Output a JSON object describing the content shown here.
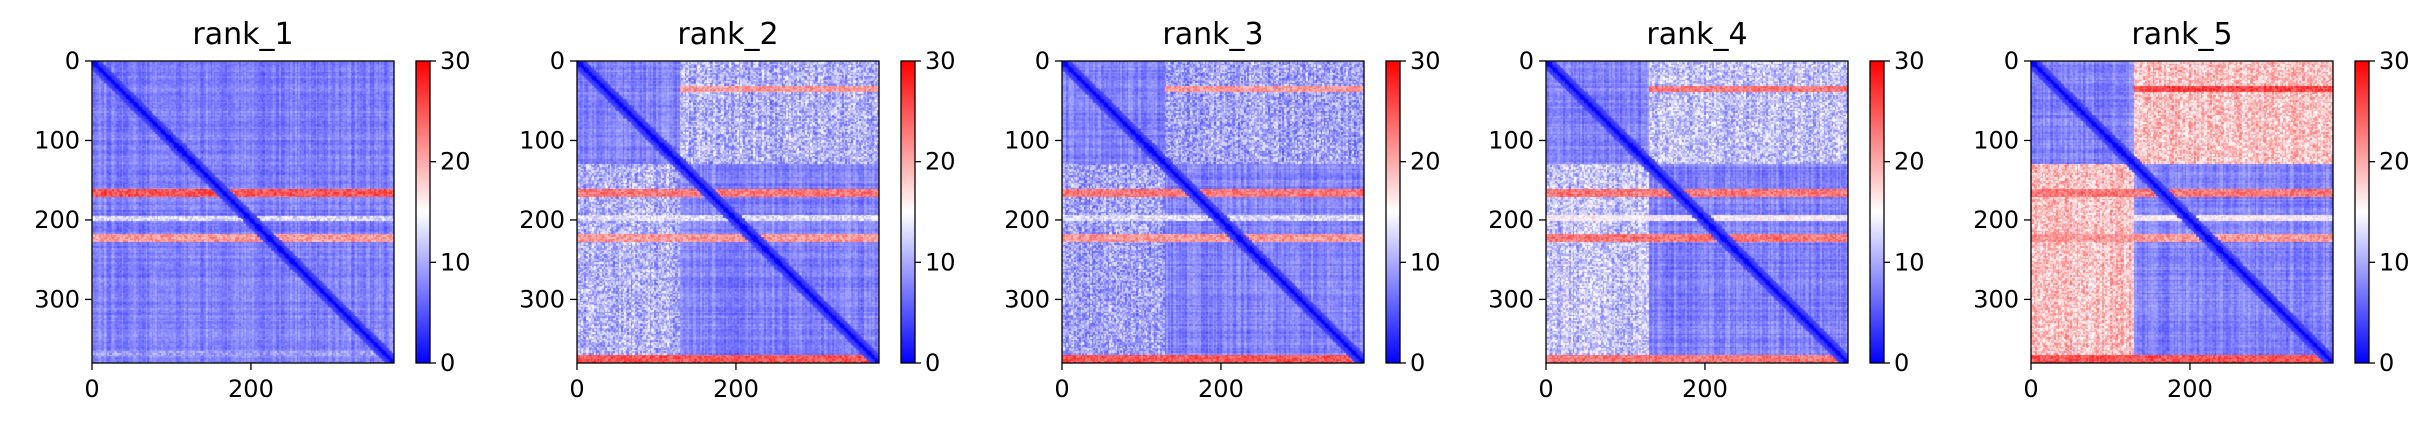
{
  "chart_data": [
    {
      "type": "heatmap",
      "title": "rank_1",
      "x_ticks": [
        0,
        200
      ],
      "y_ticks": [
        0,
        100,
        200,
        300
      ],
      "xlim": [
        0,
        380
      ],
      "ylim": [
        380,
        0
      ],
      "colorbar": {
        "ticks": [
          0,
          10,
          20,
          30
        ],
        "range": [
          0,
          30
        ],
        "colormap": "bwr"
      },
      "colormap_colors": [
        "#0000ff",
        "#ffffff",
        "#ff0000"
      ],
      "bands": [
        {
          "range": [
            163,
            173
          ],
          "value": 26,
          "x_extent": [
            0,
            380
          ]
        },
        {
          "range": [
            218,
            228
          ],
          "value": 22,
          "x_extent": [
            0,
            380
          ]
        },
        {
          "range": [
            196,
            202
          ],
          "value": 14,
          "x_extent": [
            0,
            380
          ]
        },
        {
          "range": [
            367,
            373
          ],
          "value": 10,
          "x_extent": [
            0,
            380
          ]
        }
      ],
      "blocks": []
    },
    {
      "type": "heatmap",
      "title": "rank_2",
      "x_ticks": [
        0,
        200
      ],
      "y_ticks": [
        0,
        100,
        200,
        300
      ],
      "xlim": [
        0,
        380
      ],
      "ylim": [
        380,
        0
      ],
      "colorbar": {
        "ticks": [
          0,
          10,
          20,
          30
        ],
        "range": [
          0,
          30
        ],
        "colormap": "bwr"
      },
      "colormap_colors": [
        "#0000ff",
        "#ffffff",
        "#ff0000"
      ],
      "bands": [
        {
          "range": [
            32,
            40
          ],
          "value": 22,
          "x_extent": [
            130,
            380
          ]
        },
        {
          "range": [
            163,
            173
          ],
          "value": 24,
          "x_extent": [
            0,
            380
          ]
        },
        {
          "range": [
            218,
            228
          ],
          "value": 22,
          "x_extent": [
            0,
            380
          ]
        },
        {
          "range": [
            195,
            202
          ],
          "value": 14,
          "x_extent": [
            0,
            380
          ]
        },
        {
          "range": [
            370,
            380
          ],
          "value": 26,
          "x_extent": [
            0,
            380
          ]
        }
      ],
      "blocks": [
        {
          "x": [
            130,
            380
          ],
          "y": [
            0,
            130
          ],
          "value": 9
        }
      ]
    },
    {
      "type": "heatmap",
      "title": "rank_3",
      "x_ticks": [
        0,
        200
      ],
      "y_ticks": [
        0,
        100,
        200,
        300
      ],
      "xlim": [
        0,
        380
      ],
      "ylim": [
        380,
        0
      ],
      "colorbar": {
        "ticks": [
          0,
          10,
          20,
          30
        ],
        "range": [
          0,
          30
        ],
        "colormap": "bwr"
      },
      "colormap_colors": [
        "#0000ff",
        "#ffffff",
        "#ff0000"
      ],
      "bands": [
        {
          "range": [
            32,
            40
          ],
          "value": 22,
          "x_extent": [
            130,
            380
          ]
        },
        {
          "range": [
            163,
            173
          ],
          "value": 24,
          "x_extent": [
            0,
            380
          ]
        },
        {
          "range": [
            218,
            228
          ],
          "value": 22,
          "x_extent": [
            0,
            380
          ]
        },
        {
          "range": [
            195,
            202
          ],
          "value": 14,
          "x_extent": [
            0,
            380
          ]
        },
        {
          "range": [
            370,
            380
          ],
          "value": 26,
          "x_extent": [
            0,
            380
          ]
        }
      ],
      "blocks": [
        {
          "x": [
            130,
            380
          ],
          "y": [
            0,
            130
          ],
          "value": 8
        }
      ]
    },
    {
      "type": "heatmap",
      "title": "rank_4",
      "x_ticks": [
        0,
        200
      ],
      "y_ticks": [
        0,
        100,
        200,
        300
      ],
      "xlim": [
        0,
        380
      ],
      "ylim": [
        380,
        0
      ],
      "colorbar": {
        "ticks": [
          0,
          10,
          20,
          30
        ],
        "range": [
          0,
          30
        ],
        "colormap": "bwr"
      },
      "colormap_colors": [
        "#0000ff",
        "#ffffff",
        "#ff0000"
      ],
      "bands": [
        {
          "range": [
            32,
            40
          ],
          "value": 24,
          "x_extent": [
            130,
            380
          ]
        },
        {
          "range": [
            163,
            173
          ],
          "value": 24,
          "x_extent": [
            0,
            380
          ]
        },
        {
          "range": [
            218,
            228
          ],
          "value": 24,
          "x_extent": [
            0,
            380
          ]
        },
        {
          "range": [
            195,
            202
          ],
          "value": 16,
          "x_extent": [
            0,
            380
          ]
        },
        {
          "range": [
            370,
            380
          ],
          "value": 24,
          "x_extent": [
            0,
            380
          ]
        }
      ],
      "blocks": [
        {
          "x": [
            130,
            380
          ],
          "y": [
            0,
            130
          ],
          "value": 10
        }
      ]
    },
    {
      "type": "heatmap",
      "title": "rank_5",
      "x_ticks": [
        0,
        200
      ],
      "y_ticks": [
        0,
        100,
        200,
        300
      ],
      "xlim": [
        0,
        380
      ],
      "ylim": [
        380,
        0
      ],
      "colorbar": {
        "ticks": [
          0,
          10,
          20,
          30
        ],
        "range": [
          0,
          30
        ],
        "colormap": "bwr"
      },
      "colormap_colors": [
        "#0000ff",
        "#ffffff",
        "#ff0000"
      ],
      "bands": [
        {
          "range": [
            32,
            40
          ],
          "value": 27,
          "x_extent": [
            130,
            380
          ]
        },
        {
          "range": [
            163,
            173
          ],
          "value": 24,
          "x_extent": [
            0,
            380
          ]
        },
        {
          "range": [
            218,
            228
          ],
          "value": 22,
          "x_extent": [
            0,
            380
          ]
        },
        {
          "range": [
            195,
            202
          ],
          "value": 16,
          "x_extent": [
            0,
            380
          ]
        },
        {
          "range": [
            370,
            380
          ],
          "value": 26,
          "x_extent": [
            0,
            380
          ]
        }
      ],
      "blocks": [
        {
          "x": [
            130,
            380
          ],
          "y": [
            0,
            130
          ],
          "value": 18
        },
        {
          "x": [
            0,
            130
          ],
          "y": [
            130,
            380
          ],
          "value": 17
        }
      ]
    }
  ]
}
